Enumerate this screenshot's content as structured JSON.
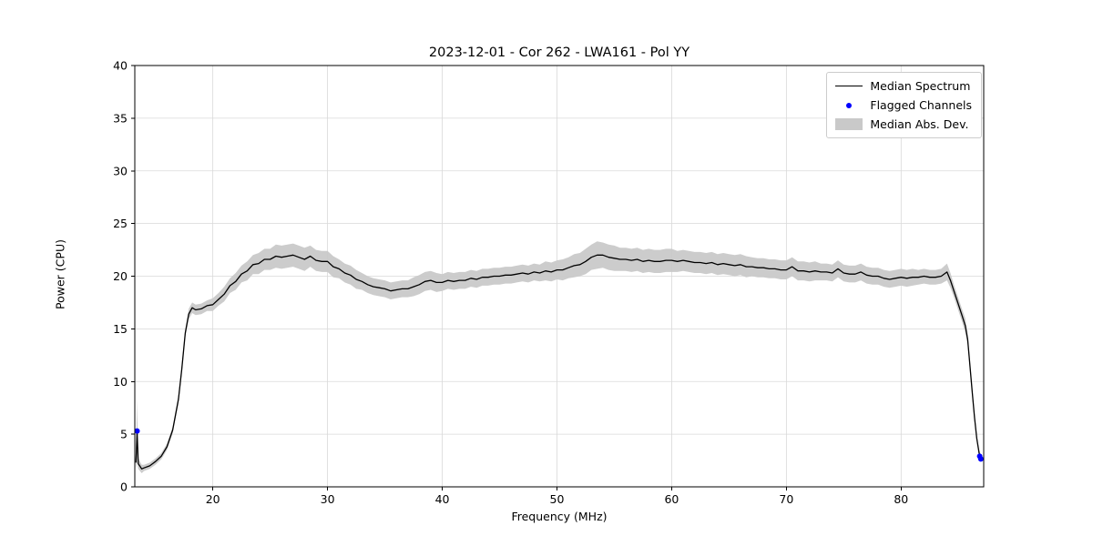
{
  "title": "2023-12-01 - Cor 262 - LWA161 - Pol YY",
  "legend": {
    "median_spectrum": "Median Spectrum",
    "flagged_channels": "Flagged Channels",
    "median_abs_dev": "Median Abs. Dev."
  },
  "colors": {
    "line": "#000000",
    "flagged": "#0000ff",
    "band": "#c9c9c9",
    "grid": "#d9d9d9",
    "spine": "#000000"
  },
  "chart_data": {
    "type": "line",
    "title": "2023-12-01 - Cor 262 - LWA161 - Pol YY",
    "xlabel": "Frequency (MHz)",
    "ylabel": "Power (CPU)",
    "xlim": [
      13.2,
      87.2
    ],
    "ylim": [
      0,
      40
    ],
    "xticks": [
      20,
      30,
      40,
      50,
      60,
      70,
      80
    ],
    "yticks": [
      0,
      5,
      10,
      15,
      20,
      25,
      30,
      35,
      40
    ],
    "grid": true,
    "legend_position": "upper right",
    "series_note": "points are [frequency_MHz, median_power_CPU, median_abs_dev]",
    "points": [
      [
        13.3,
        2.3,
        0.6
      ],
      [
        13.4,
        5.3,
        3.0
      ],
      [
        13.5,
        2.2,
        0.5
      ],
      [
        13.8,
        1.7,
        0.4
      ],
      [
        14.0,
        1.8,
        0.3
      ],
      [
        14.5,
        2.0,
        0.3
      ],
      [
        15.0,
        2.4,
        0.3
      ],
      [
        15.5,
        2.9,
        0.3
      ],
      [
        16.0,
        3.8,
        0.3
      ],
      [
        16.5,
        5.4,
        0.3
      ],
      [
        17.0,
        8.3,
        0.4
      ],
      [
        17.3,
        11.2,
        0.4
      ],
      [
        17.6,
        14.6,
        0.4
      ],
      [
        17.9,
        16.4,
        0.5
      ],
      [
        18.2,
        17.0,
        0.5
      ],
      [
        18.5,
        16.8,
        0.5
      ],
      [
        19.0,
        16.9,
        0.5
      ],
      [
        19.5,
        17.2,
        0.5
      ],
      [
        20.0,
        17.3,
        0.6
      ],
      [
        20.5,
        17.8,
        0.6
      ],
      [
        21.0,
        18.3,
        0.7
      ],
      [
        21.5,
        19.1,
        0.7
      ],
      [
        22.0,
        19.5,
        0.8
      ],
      [
        22.5,
        20.2,
        0.8
      ],
      [
        23.0,
        20.5,
        0.9
      ],
      [
        23.5,
        21.1,
        0.9
      ],
      [
        24.0,
        21.2,
        1.0
      ],
      [
        24.5,
        21.6,
        1.0
      ],
      [
        25.0,
        21.6,
        1.0
      ],
      [
        25.5,
        21.9,
        1.1
      ],
      [
        26.0,
        21.8,
        1.1
      ],
      [
        26.5,
        21.9,
        1.1
      ],
      [
        27.0,
        22.0,
        1.1
      ],
      [
        27.5,
        21.8,
        1.1
      ],
      [
        28.0,
        21.6,
        1.1
      ],
      [
        28.5,
        21.9,
        1.0
      ],
      [
        29.0,
        21.5,
        1.0
      ],
      [
        29.5,
        21.4,
        1.0
      ],
      [
        30.0,
        21.4,
        1.0
      ],
      [
        30.5,
        20.9,
        1.0
      ],
      [
        31.0,
        20.7,
        0.9
      ],
      [
        31.5,
        20.3,
        0.9
      ],
      [
        32.0,
        20.1,
        0.9
      ],
      [
        32.5,
        19.7,
        0.9
      ],
      [
        33.0,
        19.5,
        0.8
      ],
      [
        33.5,
        19.2,
        0.8
      ],
      [
        34.0,
        19.0,
        0.8
      ],
      [
        34.5,
        18.9,
        0.8
      ],
      [
        35.0,
        18.8,
        0.8
      ],
      [
        35.5,
        18.6,
        0.8
      ],
      [
        36.0,
        18.7,
        0.8
      ],
      [
        36.5,
        18.8,
        0.8
      ],
      [
        37.0,
        18.8,
        0.8
      ],
      [
        37.5,
        19.0,
        0.9
      ],
      [
        38.0,
        19.2,
        0.9
      ],
      [
        38.5,
        19.5,
        0.9
      ],
      [
        39.0,
        19.6,
        0.9
      ],
      [
        39.5,
        19.4,
        0.9
      ],
      [
        40.0,
        19.4,
        0.8
      ],
      [
        40.5,
        19.6,
        0.8
      ],
      [
        41.0,
        19.5,
        0.8
      ],
      [
        41.5,
        19.6,
        0.8
      ],
      [
        42.0,
        19.6,
        0.8
      ],
      [
        42.5,
        19.8,
        0.8
      ],
      [
        43.0,
        19.7,
        0.8
      ],
      [
        43.5,
        19.9,
        0.8
      ],
      [
        44.0,
        19.9,
        0.8
      ],
      [
        44.5,
        20.0,
        0.8
      ],
      [
        45.0,
        20.0,
        0.8
      ],
      [
        45.5,
        20.1,
        0.8
      ],
      [
        46.0,
        20.1,
        0.8
      ],
      [
        46.5,
        20.2,
        0.8
      ],
      [
        47.0,
        20.3,
        0.8
      ],
      [
        47.5,
        20.2,
        0.8
      ],
      [
        48.0,
        20.4,
        0.8
      ],
      [
        48.5,
        20.3,
        0.8
      ],
      [
        49.0,
        20.5,
        0.9
      ],
      [
        49.5,
        20.4,
        0.9
      ],
      [
        50.0,
        20.6,
        0.9
      ],
      [
        50.5,
        20.6,
        1.0
      ],
      [
        51.0,
        20.8,
        1.0
      ],
      [
        51.5,
        21.0,
        1.1
      ],
      [
        52.0,
        21.1,
        1.1
      ],
      [
        52.5,
        21.4,
        1.2
      ],
      [
        53.0,
        21.8,
        1.2
      ],
      [
        53.5,
        22.0,
        1.3
      ],
      [
        54.0,
        22.0,
        1.2
      ],
      [
        54.5,
        21.8,
        1.2
      ],
      [
        55.0,
        21.7,
        1.2
      ],
      [
        55.5,
        21.6,
        1.1
      ],
      [
        56.0,
        21.6,
        1.1
      ],
      [
        56.5,
        21.5,
        1.1
      ],
      [
        57.0,
        21.6,
        1.1
      ],
      [
        57.5,
        21.4,
        1.1
      ],
      [
        58.0,
        21.5,
        1.1
      ],
      [
        58.5,
        21.4,
        1.1
      ],
      [
        59.0,
        21.4,
        1.1
      ],
      [
        59.5,
        21.5,
        1.1
      ],
      [
        60.0,
        21.5,
        1.1
      ],
      [
        60.5,
        21.4,
        1.0
      ],
      [
        61.0,
        21.5,
        1.0
      ],
      [
        61.5,
        21.4,
        1.0
      ],
      [
        62.0,
        21.3,
        1.0
      ],
      [
        62.5,
        21.3,
        1.0
      ],
      [
        63.0,
        21.2,
        1.0
      ],
      [
        63.5,
        21.3,
        1.0
      ],
      [
        64.0,
        21.1,
        1.0
      ],
      [
        64.5,
        21.2,
        1.0
      ],
      [
        65.0,
        21.1,
        1.0
      ],
      [
        65.5,
        21.0,
        1.0
      ],
      [
        66.0,
        21.1,
        1.0
      ],
      [
        66.5,
        20.9,
        1.0
      ],
      [
        67.0,
        20.9,
        0.9
      ],
      [
        67.5,
        20.8,
        0.9
      ],
      [
        68.0,
        20.8,
        0.9
      ],
      [
        68.5,
        20.7,
        0.9
      ],
      [
        69.0,
        20.7,
        0.9
      ],
      [
        69.5,
        20.6,
        0.9
      ],
      [
        70.0,
        20.6,
        0.9
      ],
      [
        70.5,
        20.9,
        0.9
      ],
      [
        71.0,
        20.5,
        0.9
      ],
      [
        71.5,
        20.5,
        0.9
      ],
      [
        72.0,
        20.4,
        0.9
      ],
      [
        72.5,
        20.5,
        0.9
      ],
      [
        73.0,
        20.4,
        0.8
      ],
      [
        73.5,
        20.4,
        0.8
      ],
      [
        74.0,
        20.3,
        0.8
      ],
      [
        74.5,
        20.7,
        0.8
      ],
      [
        75.0,
        20.3,
        0.8
      ],
      [
        75.5,
        20.2,
        0.8
      ],
      [
        76.0,
        20.2,
        0.8
      ],
      [
        76.5,
        20.4,
        0.8
      ],
      [
        77.0,
        20.1,
        0.8
      ],
      [
        77.5,
        20.0,
        0.8
      ],
      [
        78.0,
        20.0,
        0.8
      ],
      [
        78.5,
        19.8,
        0.8
      ],
      [
        79.0,
        19.7,
        0.8
      ],
      [
        79.5,
        19.8,
        0.8
      ],
      [
        80.0,
        19.9,
        0.8
      ],
      [
        80.5,
        19.8,
        0.8
      ],
      [
        81.0,
        19.9,
        0.8
      ],
      [
        81.5,
        19.9,
        0.7
      ],
      [
        82.0,
        20.0,
        0.7
      ],
      [
        82.5,
        19.9,
        0.7
      ],
      [
        83.0,
        19.9,
        0.7
      ],
      [
        83.5,
        20.0,
        0.7
      ],
      [
        84.0,
        20.4,
        0.8
      ],
      [
        84.3,
        19.6,
        0.7
      ],
      [
        84.6,
        18.6,
        0.6
      ],
      [
        85.0,
        17.3,
        0.6
      ],
      [
        85.3,
        16.3,
        0.6
      ],
      [
        85.6,
        15.3,
        0.7
      ],
      [
        85.8,
        14.0,
        0.5
      ],
      [
        86.0,
        11.5,
        0.4
      ],
      [
        86.2,
        9.0,
        0.4
      ],
      [
        86.4,
        6.6,
        0.3
      ],
      [
        86.6,
        4.6,
        0.3
      ],
      [
        86.8,
        3.2,
        0.3
      ],
      [
        87.0,
        2.7,
        0.2
      ]
    ],
    "flagged_channels": [
      [
        13.4,
        5.3
      ],
      [
        86.85,
        2.9
      ],
      [
        86.95,
        2.65
      ]
    ],
    "legend_entries": [
      "Median Spectrum",
      "Flagged Channels",
      "Median Abs. Dev."
    ]
  }
}
